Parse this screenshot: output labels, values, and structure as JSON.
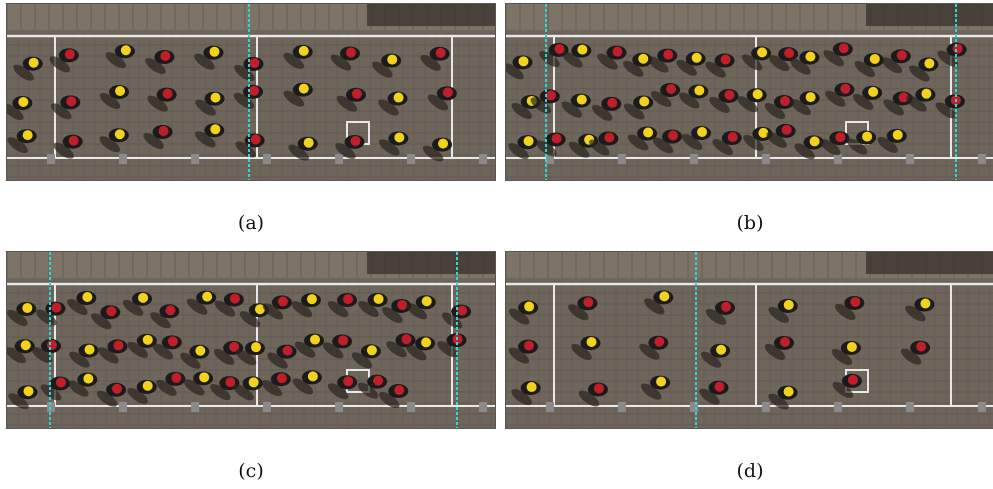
{
  "panels": [
    {
      "id": "a",
      "caption": "(a)",
      "cyan_lines": [
        1
      ],
      "yellow": 16,
      "red": 14
    },
    {
      "id": "b",
      "caption": "(b)",
      "cyan_lines": [
        2
      ],
      "yellow": 24,
      "red": 22
    },
    {
      "id": "c",
      "caption": "(c)",
      "cyan_lines": [
        2
      ],
      "yellow": 22,
      "red": 24
    },
    {
      "id": "d",
      "caption": "(d)",
      "cyan_lines": [
        1
      ],
      "yellow": 10,
      "red": 10
    }
  ],
  "colors": {
    "pavement": "#6e655b",
    "stone": "#7d7366",
    "lane": "#e8e8e8",
    "cyan": "#2fd6d6",
    "yellow": "#f2d21b",
    "red": "#c01f2a",
    "body": "#1b1b1b",
    "shadow": "#2a2520"
  }
}
